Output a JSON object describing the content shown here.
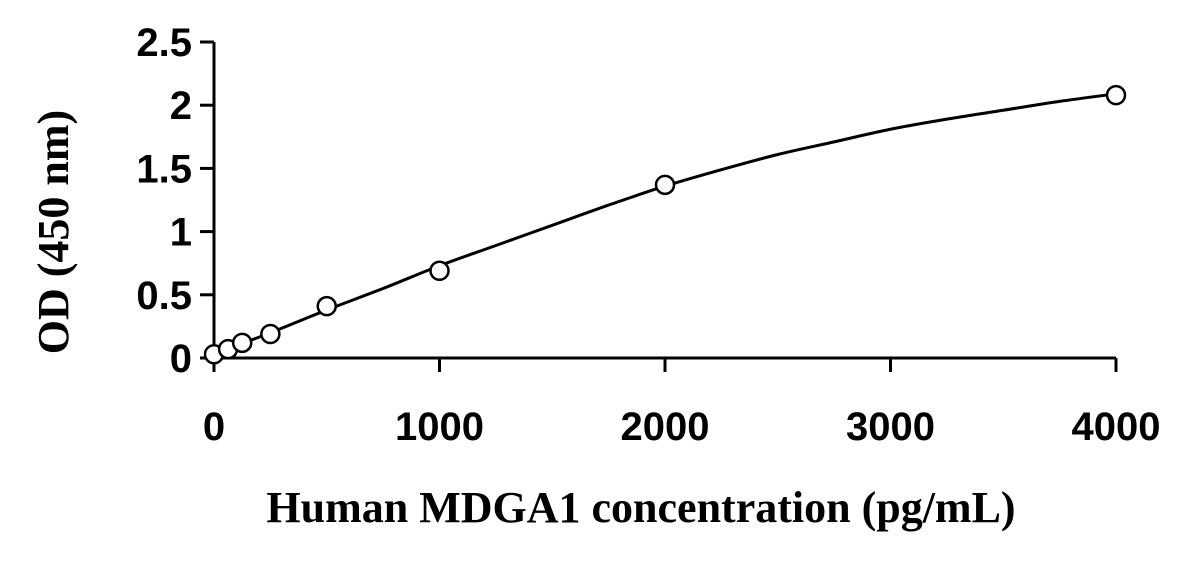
{
  "chart_data": {
    "type": "scatter",
    "xlabel": "Human MDGA1 concentration (pg/mL)",
    "ylabel": "OD (450 nm)",
    "xlim": [
      0,
      4000
    ],
    "ylim": [
      0,
      2.5
    ],
    "x_ticks": [
      "0",
      "1000",
      "2000",
      "3000",
      "4000"
    ],
    "y_ticks": [
      "0",
      "0.5",
      "1",
      "1.5",
      "2",
      "2.5"
    ],
    "grid": false,
    "legend": "none",
    "series": [
      {
        "marker": "open-circle",
        "x": [
          0,
          62.5,
          125,
          250,
          500,
          1000,
          2000,
          4000
        ],
        "y": [
          0.03,
          0.07,
          0.12,
          0.19,
          0.41,
          0.69,
          1.37,
          2.08
        ]
      }
    ],
    "fit_curve": {
      "style": "smooth-line",
      "x": [
        0,
        250,
        500,
        750,
        1000,
        1250,
        1500,
        1750,
        2000,
        2250,
        2500,
        2750,
        3000,
        3250,
        3500,
        3750,
        4000
      ],
      "y": [
        0.03,
        0.2,
        0.38,
        0.55,
        0.73,
        0.89,
        1.05,
        1.21,
        1.36,
        1.49,
        1.61,
        1.71,
        1.81,
        1.89,
        1.96,
        2.03,
        2.09
      ]
    }
  }
}
